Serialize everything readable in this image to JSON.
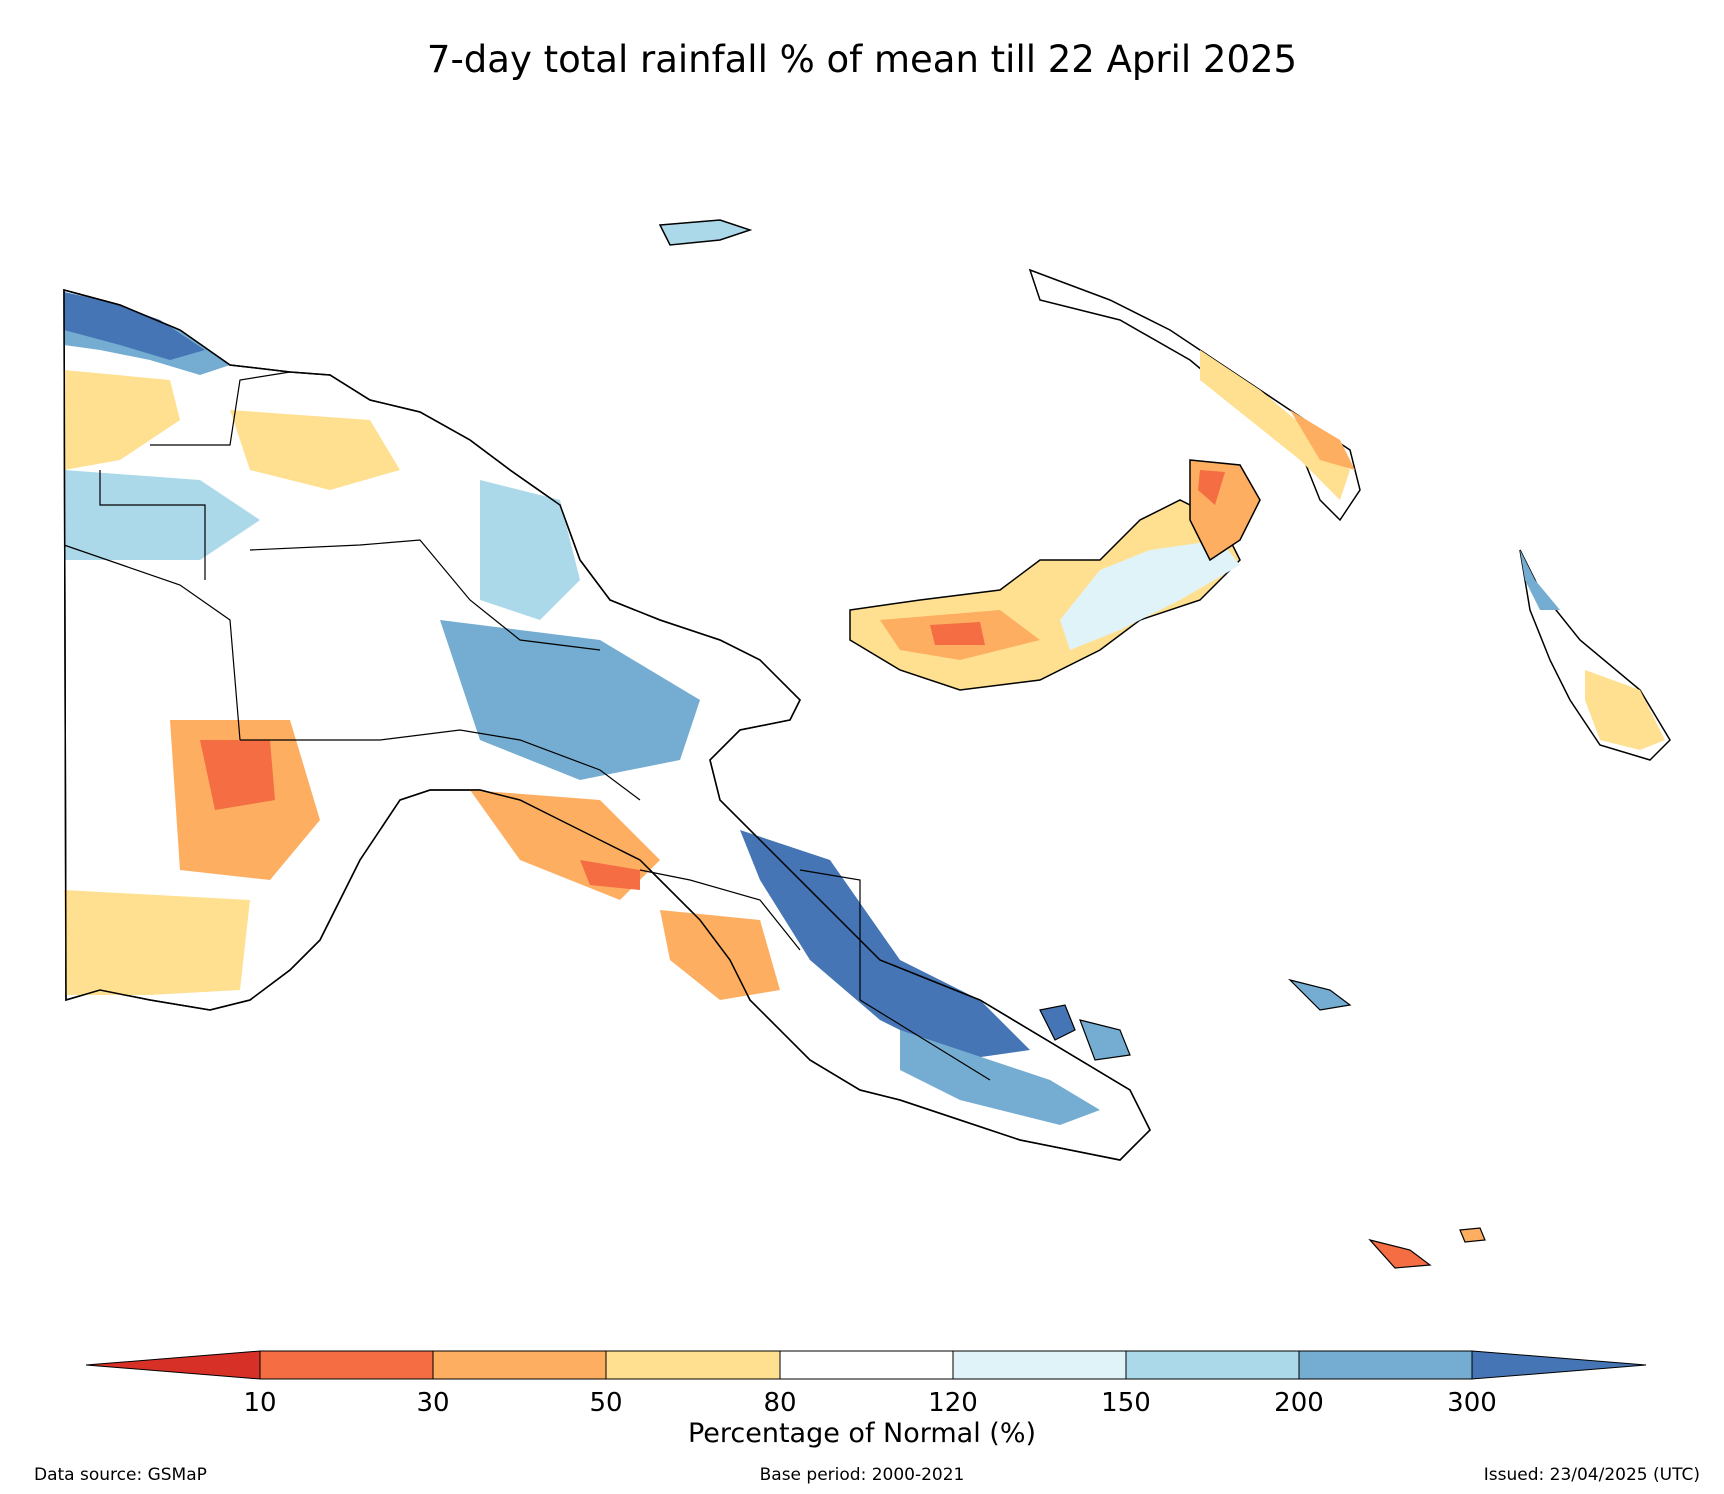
{
  "title": "7-day total rainfall % of mean till 22 April 2025",
  "legend": {
    "title": "Percentage of Normal (%)",
    "ticks": [
      "10",
      "30",
      "50",
      "80",
      "120",
      "150",
      "200",
      "300"
    ],
    "colors": [
      "#d73027",
      "#f46d43",
      "#fdae61",
      "#fee090",
      "#ffffff",
      "#e0f3f8",
      "#abd9e9",
      "#74add1",
      "#4575b4"
    ]
  },
  "footer": {
    "source": "Data source: GSMaP",
    "base_period": "Base period: 2000-2021",
    "issued": "Issued: 23/04/2025 (UTC)"
  }
}
